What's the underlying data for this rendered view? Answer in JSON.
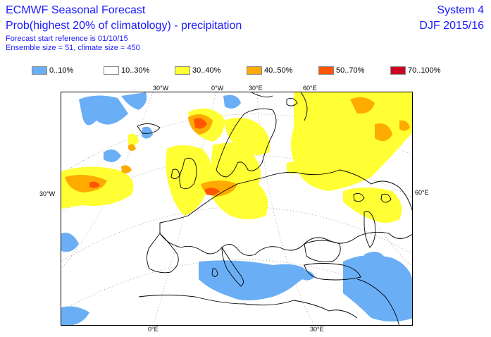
{
  "header": {
    "title": "ECMWF Seasonal Forecast",
    "subtitle": "Prob(highest 20% of climatology) - precipitation",
    "start_ref": "Forecast start reference is 01/10/15",
    "ensemble": "Ensemble size = 51, climate size = 450",
    "system": "System 4",
    "season": "DJF 2015/16"
  },
  "legend": {
    "items": [
      {
        "label": "0..10%",
        "color": "#6aaef5"
      },
      {
        "label": "10..30%",
        "color": "#ffffff"
      },
      {
        "label": "30..40%",
        "color": "#ffff33"
      },
      {
        "label": "40..50%",
        "color": "#ffaa00"
      },
      {
        "label": "50..70%",
        "color": "#ff5500"
      },
      {
        "label": "70..100%",
        "color": "#cc0022"
      }
    ]
  },
  "map": {
    "lon_labels_top": [
      "30°W",
      "0°W",
      "30°E",
      "60°E"
    ],
    "lat_label_left": "30°W",
    "lat_label_right": "60°E",
    "lon_labels_bottom": [
      "0°E",
      "30°E"
    ]
  }
}
